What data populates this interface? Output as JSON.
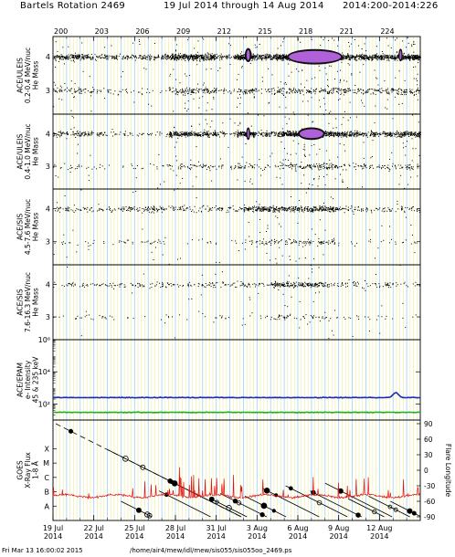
{
  "title": {
    "rotation": "Bartels Rotation 2469",
    "range": "19 Jul 2014 through 14 Aug 2014",
    "doy_range": "2014:200-2014:226"
  },
  "footer": {
    "timestamp": "Fri Mar 13 16:00:02 2015",
    "path": "/home/air4/mew/idl/mew/sis055/sis055oo_2469.ps"
  },
  "colors": {
    "grid_day": "#eded9a",
    "grid_major": "#9fd4ee",
    "scatter": "#000000",
    "dense": "#b060d8",
    "proton": "#1c2cb0",
    "electron": "#22b022",
    "xray": "#e01010",
    "flare": "#000000"
  },
  "chart_data": [
    {
      "type": "scatter",
      "panel": "uleis_low",
      "ylabel_lines": [
        "ACE/ULEIS",
        "0.2-0.4 MeV/nuc",
        "He Mass"
      ],
      "ylim": [
        2.3,
        4.6
      ],
      "yticks": [
        3,
        4
      ],
      "top_doy_ticks": [
        "200",
        "203",
        "206",
        "209",
        "212",
        "215",
        "218",
        "221",
        "224"
      ],
      "activity": [
        {
          "start": 0,
          "end": 3,
          "level": 0.5
        },
        {
          "start": 3,
          "end": 8.5,
          "level": 0.25
        },
        {
          "start": 8.5,
          "end": 12,
          "level": 0.85
        },
        {
          "start": 12,
          "end": 13.5,
          "level": 0.3
        },
        {
          "start": 13.5,
          "end": 14.8,
          "level": 1.0
        },
        {
          "start": 14.8,
          "end": 16.5,
          "level": 0.6
        },
        {
          "start": 16.5,
          "end": 21.5,
          "level": 1.0
        },
        {
          "start": 21.5,
          "end": 24.5,
          "level": 0.7
        },
        {
          "start": 24.5,
          "end": 27,
          "level": 0.9
        }
      ],
      "dense_regions": [
        {
          "start": 14.1,
          "end": 14.6,
          "y": 4.05,
          "spread": 0.1
        },
        {
          "start": 17.2,
          "end": 21.3,
          "y": 4.0,
          "spread": 0.12
        },
        {
          "start": 25.4,
          "end": 25.7,
          "y": 4.05,
          "spread": 0.08
        }
      ]
    },
    {
      "type": "scatter",
      "panel": "uleis_high",
      "ylabel_lines": [
        "ACE/ULEIS",
        "0.4-1.0 MeV/nuc",
        "He Mass"
      ],
      "ylim": [
        2.3,
        4.6
      ],
      "yticks": [
        3,
        4
      ],
      "activity": [
        {
          "start": 0,
          "end": 3,
          "level": 0.25
        },
        {
          "start": 3,
          "end": 8.5,
          "level": 0.1
        },
        {
          "start": 8.5,
          "end": 12,
          "level": 0.55
        },
        {
          "start": 12,
          "end": 13.5,
          "level": 0.2
        },
        {
          "start": 13.5,
          "end": 14.8,
          "level": 0.8
        },
        {
          "start": 14.8,
          "end": 16.5,
          "level": 0.3
        },
        {
          "start": 16.5,
          "end": 21.5,
          "level": 0.8
        },
        {
          "start": 21.5,
          "end": 24.5,
          "level": 0.4
        },
        {
          "start": 24.5,
          "end": 27,
          "level": 0.55
        }
      ],
      "dense_regions": [
        {
          "start": 14.2,
          "end": 14.5,
          "y": 4.0,
          "spread": 0.08
        },
        {
          "start": 18.0,
          "end": 20.0,
          "y": 4.0,
          "spread": 0.08
        }
      ]
    },
    {
      "type": "scatter",
      "panel": "sis_low",
      "ylabel_lines": [
        "ACE/SIS",
        "4.5-7.6 MeV/nuc",
        "He Mass"
      ],
      "ylim": [
        2.3,
        4.6
      ],
      "yticks": [
        3,
        4
      ],
      "activity": [
        {
          "start": 0,
          "end": 5,
          "level": 0.12
        },
        {
          "start": 5,
          "end": 8.5,
          "level": 0.2
        },
        {
          "start": 8.5,
          "end": 14,
          "level": 0.12
        },
        {
          "start": 14,
          "end": 21,
          "level": 0.45
        },
        {
          "start": 21,
          "end": 27,
          "level": 0.12
        }
      ],
      "dense_regions": []
    },
    {
      "type": "scatter",
      "panel": "sis_high",
      "ylabel_lines": [
        "ACE/SIS",
        "7.6-16.3 MeV/nuc",
        "He Mass"
      ],
      "ylim": [
        2.3,
        4.6
      ],
      "yticks": [
        3,
        4
      ],
      "activity": [
        {
          "start": 0,
          "end": 16,
          "level": 0.1
        },
        {
          "start": 16,
          "end": 20,
          "level": 0.35
        },
        {
          "start": 20,
          "end": 27,
          "level": 0.1
        }
      ],
      "dense_regions": []
    },
    {
      "type": "line",
      "panel": "epam",
      "ylabel_lines": [
        "ACE/EPAM",
        "e- Intensity",
        "45 & 235 keV"
      ],
      "yscale": "log",
      "ylim": [
        10,
        1000000
      ],
      "ytick_labels": [
        "10²",
        "10⁴",
        "10⁶"
      ],
      "ytick_values": [
        100,
        10000,
        1000000
      ],
      "series": [
        {
          "name": "45 keV",
          "color": "#1c2cb0",
          "baseline": 250,
          "bumps": [
            {
              "day": 25.2,
              "value": 500
            }
          ]
        },
        {
          "name": "235 keV",
          "color": "#22b022",
          "baseline": 30,
          "bumps": []
        }
      ]
    },
    {
      "type": "line",
      "panel": "goes",
      "ylabel_lines": [
        "GOES",
        "X-Ray Flux",
        "1-8 Å"
      ],
      "ylim": [
        0,
        7
      ],
      "class_labels": [
        "A",
        "B",
        "C",
        "M",
        "X"
      ],
      "right_ylabel": "Flare Longitude",
      "right_ylim": [
        -90,
        90
      ],
      "right_ticks": [
        -90,
        -60,
        -30,
        0,
        30,
        60,
        90
      ],
      "xray_base": 1.7,
      "flare_tracks": [
        {
          "start": 0.2,
          "lon_start": 90,
          "lon_end": -90,
          "dashed": true
        },
        {
          "start": 4.0,
          "lon_start": 40,
          "lon_end": -90,
          "dashed": false
        },
        {
          "start": 5.0,
          "lon_start": -60,
          "lon_end": -90,
          "dashed": false
        },
        {
          "start": 7.8,
          "lon_start": -40,
          "lon_end": -90,
          "dashed": false
        },
        {
          "start": 11.6,
          "lon_start": -55,
          "lon_end": -90,
          "dashed": false
        },
        {
          "start": 12.3,
          "lon_start": -45,
          "lon_end": -90,
          "dashed": false
        },
        {
          "start": 14.1,
          "lon_start": -50,
          "lon_end": -90,
          "dashed": false
        },
        {
          "start": 15.4,
          "lon_start": -35,
          "lon_end": -90,
          "dashed": false
        },
        {
          "start": 17.1,
          "lon_start": -30,
          "lon_end": -90,
          "dashed": false
        },
        {
          "start": 18.9,
          "lon_start": -40,
          "lon_end": -90,
          "dashed": false
        },
        {
          "start": 20.0,
          "lon_start": -25,
          "lon_end": -90,
          "dashed": false
        },
        {
          "start": 21.7,
          "lon_start": -55,
          "lon_end": -90,
          "dashed": false
        },
        {
          "start": 23.2,
          "lon_start": -50,
          "lon_end": -90,
          "dashed": false
        },
        {
          "start": 24.8,
          "lon_start": -60,
          "lon_end": -90,
          "dashed": false
        }
      ],
      "x_ticks": [
        {
          "day": 0,
          "label": "19 Jul",
          "year": "2014"
        },
        {
          "day": 3,
          "label": "22 Jul",
          "year": "2014"
        },
        {
          "day": 6,
          "label": "25 Jul",
          "year": "2014"
        },
        {
          "day": 9,
          "label": "28 Jul",
          "year": "2014"
        },
        {
          "day": 12,
          "label": "31 Jul",
          "year": "2014"
        },
        {
          "day": 15,
          "label": "3 Aug",
          "year": "2014"
        },
        {
          "day": 18,
          "label": "6 Aug",
          "year": "2014"
        },
        {
          "day": 21,
          "label": "9 Aug",
          "year": "2014"
        },
        {
          "day": 24,
          "label": "12 Aug",
          "year": "2014"
        }
      ],
      "xlim_days": [
        0,
        27
      ]
    }
  ]
}
